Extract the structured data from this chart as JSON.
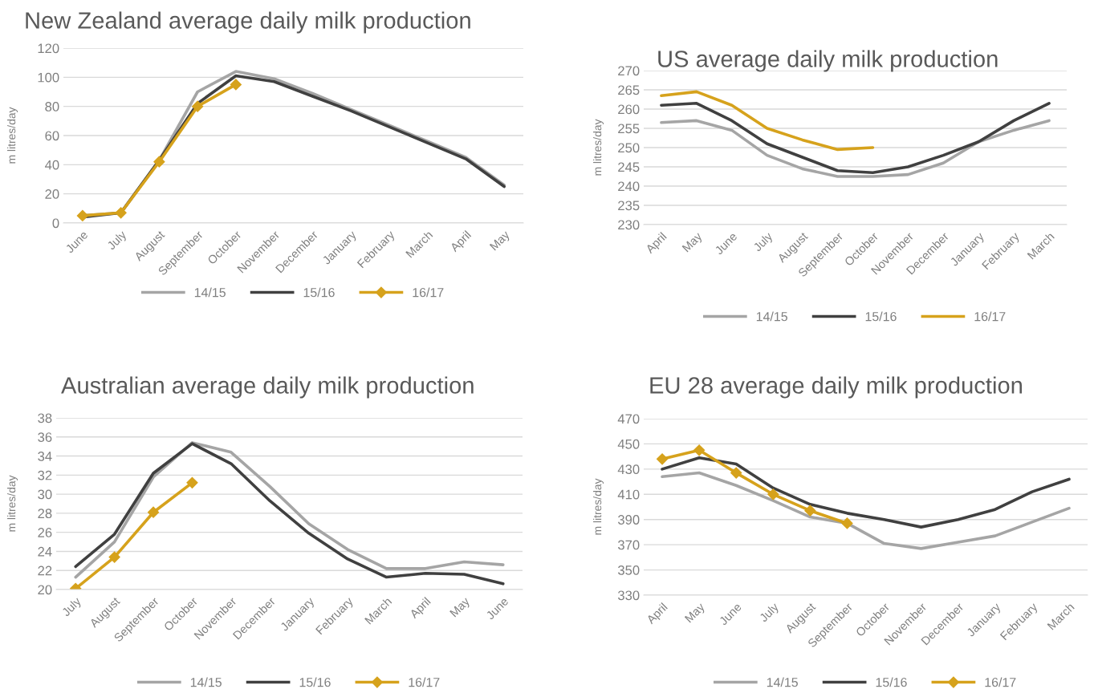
{
  "chart_data": [
    {
      "type": "line",
      "title": "New Zealand average daily milk production",
      "ylabel": "m litres/day",
      "categories": [
        "June",
        "July",
        "August",
        "September",
        "October",
        "November",
        "December",
        "January",
        "February",
        "March",
        "April",
        "May"
      ],
      "series": [
        {
          "name": "14/15",
          "color": "#a5a5a5",
          "values": [
            5,
            7,
            43,
            90,
            104,
            99,
            89,
            78,
            67,
            56,
            45,
            26
          ]
        },
        {
          "name": "15/16",
          "color": "#404040",
          "values": [
            4,
            7,
            43,
            82,
            101,
            97,
            87,
            77,
            66,
            55,
            44,
            25
          ]
        },
        {
          "name": "16/17",
          "color": "#d6a21c",
          "marker": "diamond",
          "values": [
            5,
            7,
            42,
            80,
            95,
            null,
            null,
            null,
            null,
            null,
            null,
            null
          ]
        }
      ],
      "ylim": [
        0,
        120
      ],
      "yticks": [
        0,
        20,
        40,
        60,
        80,
        100,
        120
      ],
      "grid": "y",
      "legend": "bottom"
    },
    {
      "type": "line",
      "title": "US average daily milk production",
      "ylabel": "m litres/day",
      "categories": [
        "April",
        "May",
        "June",
        "July",
        "August",
        "September",
        "October",
        "November",
        "December",
        "January",
        "February",
        "March"
      ],
      "series": [
        {
          "name": "14/15",
          "color": "#a5a5a5",
          "values": [
            256.5,
            257,
            254.5,
            248,
            244.5,
            242.5,
            242.5,
            243,
            246,
            251.5,
            254.5,
            257
          ]
        },
        {
          "name": "15/16",
          "color": "#404040",
          "values": [
            261,
            261.5,
            257,
            251,
            247.5,
            244,
            243.5,
            245,
            248,
            251.5,
            257,
            261.5
          ]
        },
        {
          "name": "16/17",
          "color": "#d6a21c",
          "values": [
            263.5,
            264.5,
            261,
            255,
            252,
            249.5,
            250,
            null,
            null,
            null,
            null,
            null
          ]
        }
      ],
      "ylim": [
        230,
        270
      ],
      "yticks": [
        230,
        235,
        240,
        245,
        250,
        255,
        260,
        265,
        270
      ],
      "grid": "y",
      "legend": "bottom"
    },
    {
      "type": "line",
      "title": "Australian average daily milk production",
      "ylabel": "m litres/day",
      "categories": [
        "July",
        "August",
        "September",
        "October",
        "November",
        "December",
        "January",
        "February",
        "March",
        "April",
        "May",
        "June"
      ],
      "series": [
        {
          "name": "14/15",
          "color": "#a5a5a5",
          "values": [
            21.3,
            25.0,
            31.8,
            35.4,
            34.4,
            30.8,
            26.9,
            24.2,
            22.2,
            22.2,
            22.9,
            22.6
          ]
        },
        {
          "name": "15/16",
          "color": "#404040",
          "values": [
            22.4,
            25.8,
            32.2,
            35.3,
            33.2,
            29.3,
            25.9,
            23.2,
            21.3,
            21.7,
            21.6,
            20.6
          ]
        },
        {
          "name": "16/17",
          "color": "#d6a21c",
          "marker": "diamond",
          "values": [
            20.1,
            23.4,
            28.1,
            31.2,
            null,
            null,
            null,
            null,
            null,
            null,
            null,
            null
          ]
        }
      ],
      "ylim": [
        20,
        38
      ],
      "yticks": [
        20,
        22,
        24,
        26,
        28,
        30,
        32,
        34,
        36,
        38
      ],
      "grid": "y",
      "legend": "bottom"
    },
    {
      "type": "line",
      "title": "EU 28 average daily milk production",
      "ylabel": "m litres/day",
      "categories": [
        "April",
        "May",
        "June",
        "July",
        "August",
        "September",
        "October",
        "November",
        "December",
        "January",
        "February",
        "March"
      ],
      "series": [
        {
          "name": "14/15",
          "color": "#a5a5a5",
          "values": [
            424,
            427,
            417,
            405,
            392,
            387,
            371,
            367,
            372,
            377,
            388,
            399
          ]
        },
        {
          "name": "15/16",
          "color": "#404040",
          "values": [
            430,
            439,
            434,
            415,
            402,
            395,
            390,
            384,
            390,
            398,
            412,
            422
          ]
        },
        {
          "name": "16/17",
          "color": "#d6a21c",
          "marker": "diamond",
          "values": [
            438,
            445,
            427,
            410,
            397,
            387,
            null,
            null,
            null,
            null,
            null,
            null
          ]
        }
      ],
      "ylim": [
        330,
        470
      ],
      "yticks": [
        330,
        350,
        370,
        390,
        410,
        430,
        450,
        470
      ],
      "grid": "y",
      "legend": "bottom"
    }
  ]
}
